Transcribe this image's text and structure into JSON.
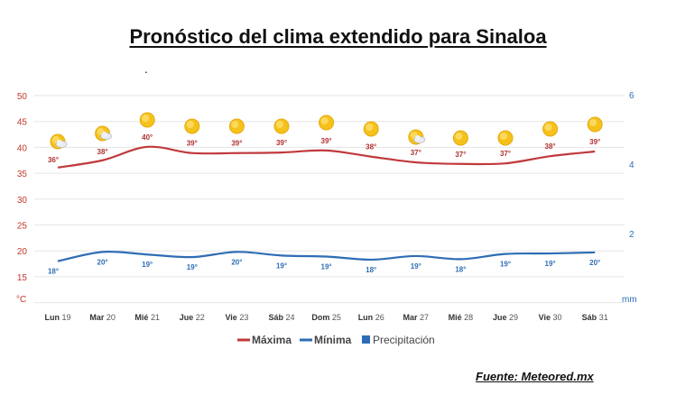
{
  "title": "Pronóstico del clima extendido para Sinaloa",
  "decor_dot": ".",
  "source": "Fuente: Meteored.mx",
  "chart_data": {
    "type": "line",
    "title": "Pronóstico del clima extendido para Sinaloa",
    "categories": [
      {
        "day": "Lun",
        "num": "19"
      },
      {
        "day": "Mar",
        "num": "20"
      },
      {
        "day": "Mié",
        "num": "21"
      },
      {
        "day": "Jue",
        "num": "22"
      },
      {
        "day": "Vie",
        "num": "23"
      },
      {
        "day": "Sáb",
        "num": "24"
      },
      {
        "day": "Dom",
        "num": "25"
      },
      {
        "day": "Lun",
        "num": "26"
      },
      {
        "day": "Mar",
        "num": "27"
      },
      {
        "day": "Mié",
        "num": "28"
      },
      {
        "day": "Jue",
        "num": "29"
      },
      {
        "day": "Vie",
        "num": "30"
      },
      {
        "day": "Sáb",
        "num": "31"
      }
    ],
    "series": [
      {
        "name": "Máxima",
        "color": "#c0393b",
        "values": [
          36,
          38,
          40,
          39,
          39,
          39,
          39,
          38,
          37,
          37,
          37,
          38,
          39
        ],
        "labels": [
          "36°",
          "38°",
          "40°",
          "39°",
          "39°",
          "39°",
          "39°",
          "38°",
          "37°",
          "37°",
          "37°",
          "38°",
          "39°"
        ],
        "line_values": [
          36.1,
          37.5,
          40.1,
          38.9,
          38.9,
          39.0,
          39.4,
          38.2,
          37.1,
          36.8,
          36.9,
          38.3,
          39.2
        ]
      },
      {
        "name": "Mínima",
        "color": "#2e6db4",
        "values": [
          18,
          20,
          19,
          19,
          20,
          19,
          19,
          18,
          19,
          18,
          19,
          19,
          20
        ],
        "labels": [
          "18°",
          "20°",
          "19°",
          "19°",
          "20°",
          "19°",
          "19°",
          "18°",
          "19°",
          "18°",
          "19°",
          "19°",
          "20°"
        ],
        "line_values": [
          18.0,
          19.8,
          19.3,
          18.8,
          19.8,
          19.1,
          18.9,
          18.3,
          19.0,
          18.4,
          19.4,
          19.5,
          19.7
        ]
      },
      {
        "name": "Precipitación",
        "color": "#2e6db4",
        "values": [
          0,
          0,
          0,
          0,
          0,
          0,
          0,
          0,
          0,
          0,
          0,
          0,
          0
        ]
      }
    ],
    "icons": [
      "sun-cloud",
      "sun-cloud",
      "sun",
      "sun",
      "sun",
      "sun",
      "sun",
      "sun",
      "sun-cloud",
      "sun",
      "sun",
      "sun",
      "sun"
    ],
    "y_left": {
      "unit": "°C",
      "ticks": [
        "50",
        "45",
        "40",
        "35",
        "30",
        "25",
        "20",
        "15"
      ],
      "range": [
        10,
        50
      ]
    },
    "y_right": {
      "unit": "mm",
      "ticks": [
        "6",
        "4",
        "2"
      ],
      "range": [
        0,
        6
      ]
    },
    "legend": [
      "Máxima",
      "Mínima",
      "Precipitación"
    ],
    "legend_position": "bottom-center",
    "grid": true
  }
}
